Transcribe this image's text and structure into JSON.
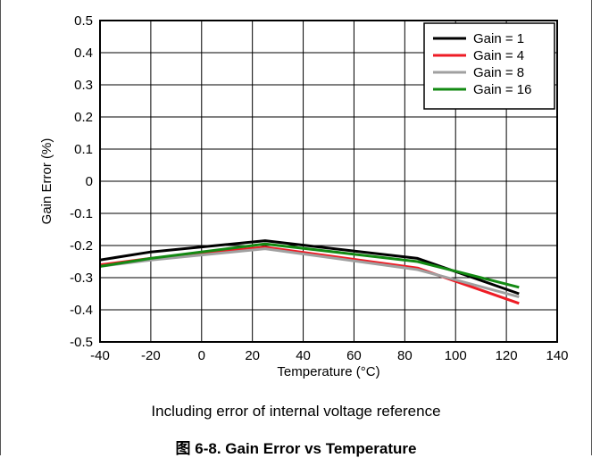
{
  "chart_data": {
    "type": "line",
    "xlabel": "Temperature (°C)",
    "ylabel": "Gain Error (%)",
    "xlim": [
      -40,
      140
    ],
    "ylim": [
      -0.5,
      0.5
    ],
    "x_ticks": [
      "-40",
      "-20",
      "0",
      "20",
      "40",
      "60",
      "80",
      "100",
      "120",
      "140"
    ],
    "y_ticks": [
      "0.5",
      "0.4",
      "0.3",
      "0.2",
      "0.1",
      "0",
      "-0.1",
      "-0.2",
      "-0.3",
      "-0.4",
      "-0.5"
    ],
    "grid": true,
    "legend_position": "top-right",
    "x": [
      -40,
      -20,
      25,
      85,
      125
    ],
    "series": [
      {
        "name": "Gain = 1",
        "color": "#000000",
        "values": [
          -0.245,
          -0.22,
          -0.185,
          -0.24,
          -0.35
        ]
      },
      {
        "name": "Gain = 4",
        "color": "#ee1c25",
        "values": [
          -0.26,
          -0.24,
          -0.205,
          -0.27,
          -0.38
        ]
      },
      {
        "name": "Gain = 8",
        "color": "#a0a0a0",
        "values": [
          -0.265,
          -0.245,
          -0.21,
          -0.275,
          -0.36
        ]
      },
      {
        "name": "Gain = 16",
        "color": "#138a13",
        "values": [
          -0.265,
          -0.24,
          -0.195,
          -0.25,
          -0.33
        ]
      }
    ]
  },
  "caption": {
    "note": "Including error of internal voltage reference",
    "title": "图 6-8. Gain Error vs Temperature"
  }
}
